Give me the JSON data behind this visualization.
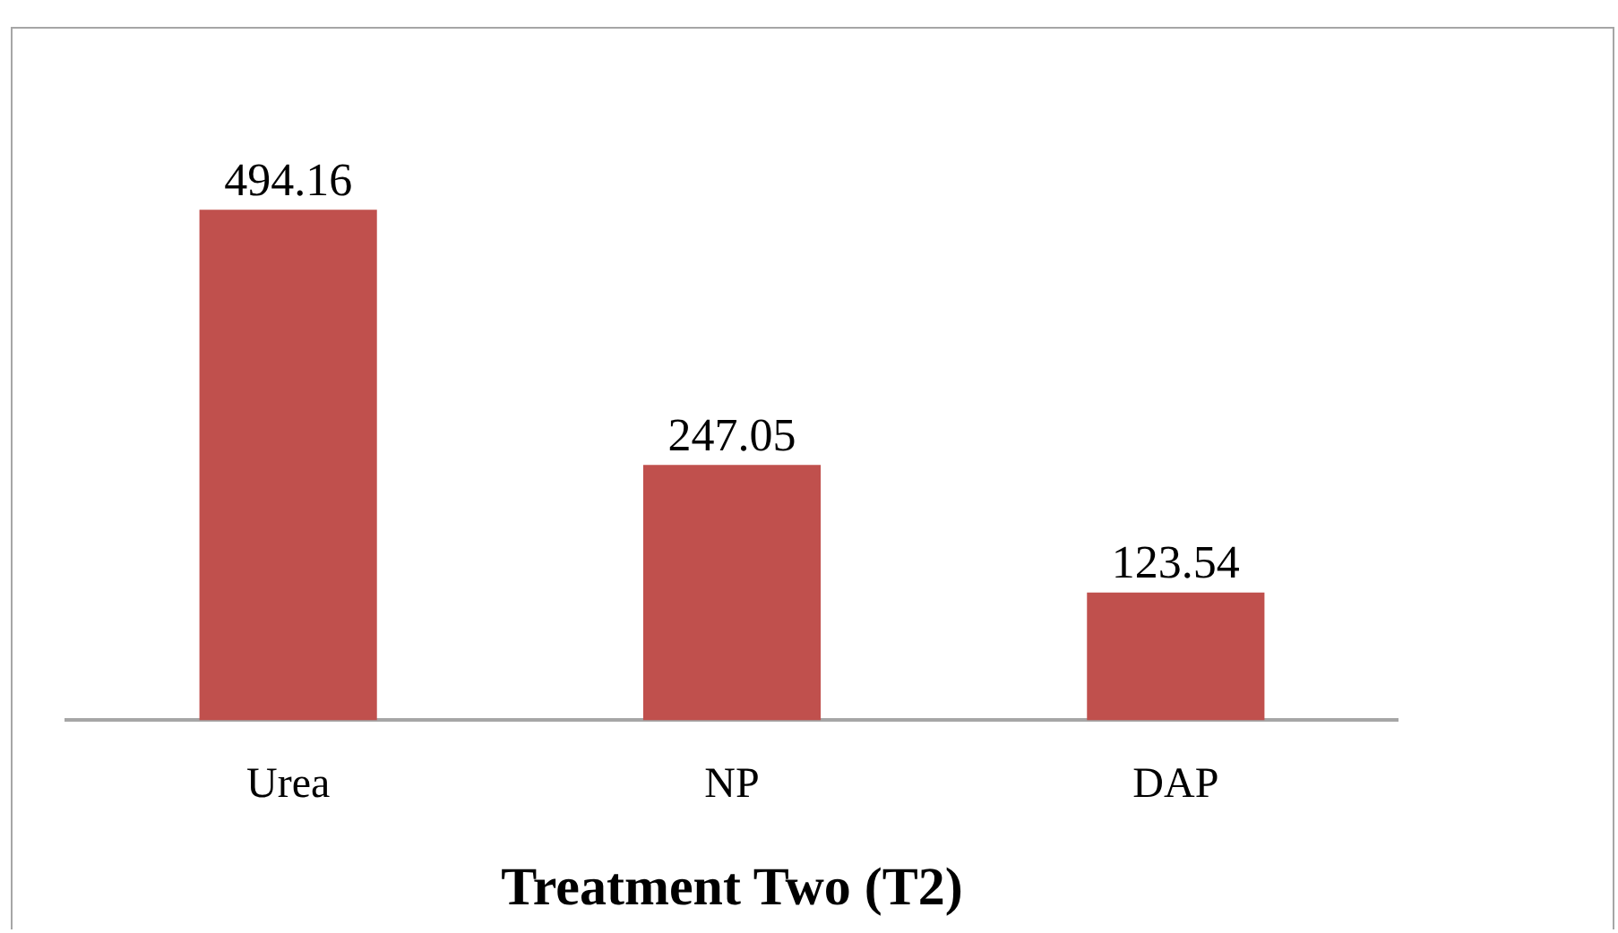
{
  "chart_data": {
    "type": "bar",
    "xlabel": "Treatment Two (T2)",
    "categories": [
      "Urea",
      "NP",
      "DAP"
    ],
    "values": [
      494.16,
      247.05,
      123.54
    ],
    "color": "#c0504d",
    "data_labels": true,
    "grid": false,
    "legend": false
  }
}
